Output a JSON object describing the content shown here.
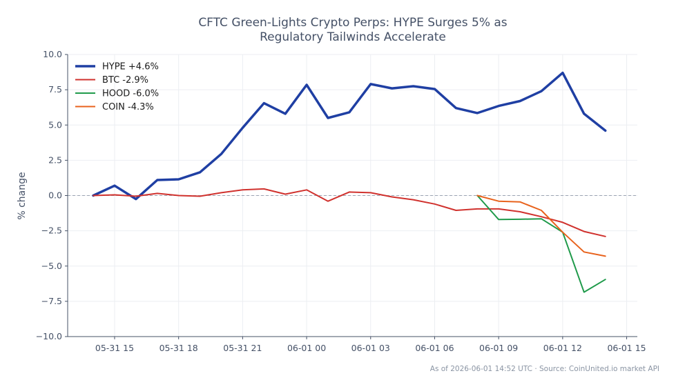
{
  "chart_data": {
    "type": "line",
    "title_lines": [
      "CFTC Green-Lights Crypto Perps: HYPE Surges 5% as",
      "Regulatory Tailwinds Accelerate"
    ],
    "xlabel": "",
    "ylabel": "% change",
    "x_unit": "hours",
    "xlim": [
      -1.2,
      25.5
    ],
    "ylim": [
      -10,
      10
    ],
    "yticks": [
      10.0,
      7.5,
      5.0,
      2.5,
      0.0,
      -2.5,
      -5.0,
      -7.5,
      -10.0
    ],
    "ytick_labels": [
      "10.0",
      "7.5",
      "5.0",
      "2.5",
      "0.0",
      "−2.5",
      "−5.0",
      "−7.5",
      "−10.0"
    ],
    "xticks": [
      {
        "x": 1,
        "label": "05-31 15"
      },
      {
        "x": 4,
        "label": "05-31 18"
      },
      {
        "x": 7,
        "label": "05-31 21"
      },
      {
        "x": 10,
        "label": "06-01 00"
      },
      {
        "x": 13,
        "label": "06-01 03"
      },
      {
        "x": 16,
        "label": "06-01 06"
      },
      {
        "x": 19,
        "label": "06-01 09"
      },
      {
        "x": 22,
        "label": "06-01 12"
      },
      {
        "x": 25,
        "label": "06-01 15"
      }
    ],
    "grid": true,
    "zero_line": true,
    "legend_position": "upper-left",
    "series": [
      {
        "name": "HYPE +4.6%",
        "color": "#1f3fa3",
        "x": [
          0,
          1,
          2,
          3,
          4,
          5,
          6,
          7,
          8,
          9,
          10,
          11,
          12,
          13,
          14,
          15,
          16,
          17,
          18,
          19,
          20,
          21,
          22,
          23,
          24
        ],
        "values": [
          0.0,
          0.7,
          -0.25,
          1.1,
          1.15,
          1.65,
          2.95,
          4.8,
          6.55,
          5.8,
          7.85,
          5.5,
          5.9,
          7.9,
          7.6,
          7.75,
          7.55,
          6.2,
          5.85,
          6.35,
          6.7,
          7.4,
          8.7,
          5.8,
          4.6
        ]
      },
      {
        "name": "BTC -2.9%",
        "color": "#d0312d",
        "x": [
          0,
          1,
          2,
          3,
          4,
          5,
          6,
          7,
          8,
          9,
          10,
          11,
          12,
          13,
          14,
          15,
          16,
          17,
          18,
          19,
          20,
          21,
          22,
          23,
          24
        ],
        "values": [
          0.0,
          0.05,
          -0.05,
          0.15,
          0.0,
          -0.05,
          0.2,
          0.4,
          0.47,
          0.1,
          0.4,
          -0.4,
          0.25,
          0.2,
          -0.1,
          -0.3,
          -0.6,
          -1.05,
          -0.95,
          -0.95,
          -1.15,
          -1.5,
          -1.9,
          -2.55,
          -2.9
        ]
      },
      {
        "name": "HOOD -6.0%",
        "color": "#1f9a4a",
        "x": [
          18,
          19,
          20,
          21,
          22,
          23,
          24
        ],
        "values": [
          0.0,
          -1.7,
          -1.68,
          -1.65,
          -2.6,
          -6.85,
          -5.95
        ]
      },
      {
        "name": "COIN -4.3%",
        "color": "#e8621c",
        "x": [
          18,
          19,
          20,
          21,
          22,
          23,
          24
        ],
        "values": [
          0.0,
          -0.4,
          -0.45,
          -1.05,
          -2.6,
          -4.0,
          -4.3
        ]
      }
    ]
  },
  "footer": "As of 2026-06-01 14:52 UTC · Source: CoinUnited.io market API"
}
